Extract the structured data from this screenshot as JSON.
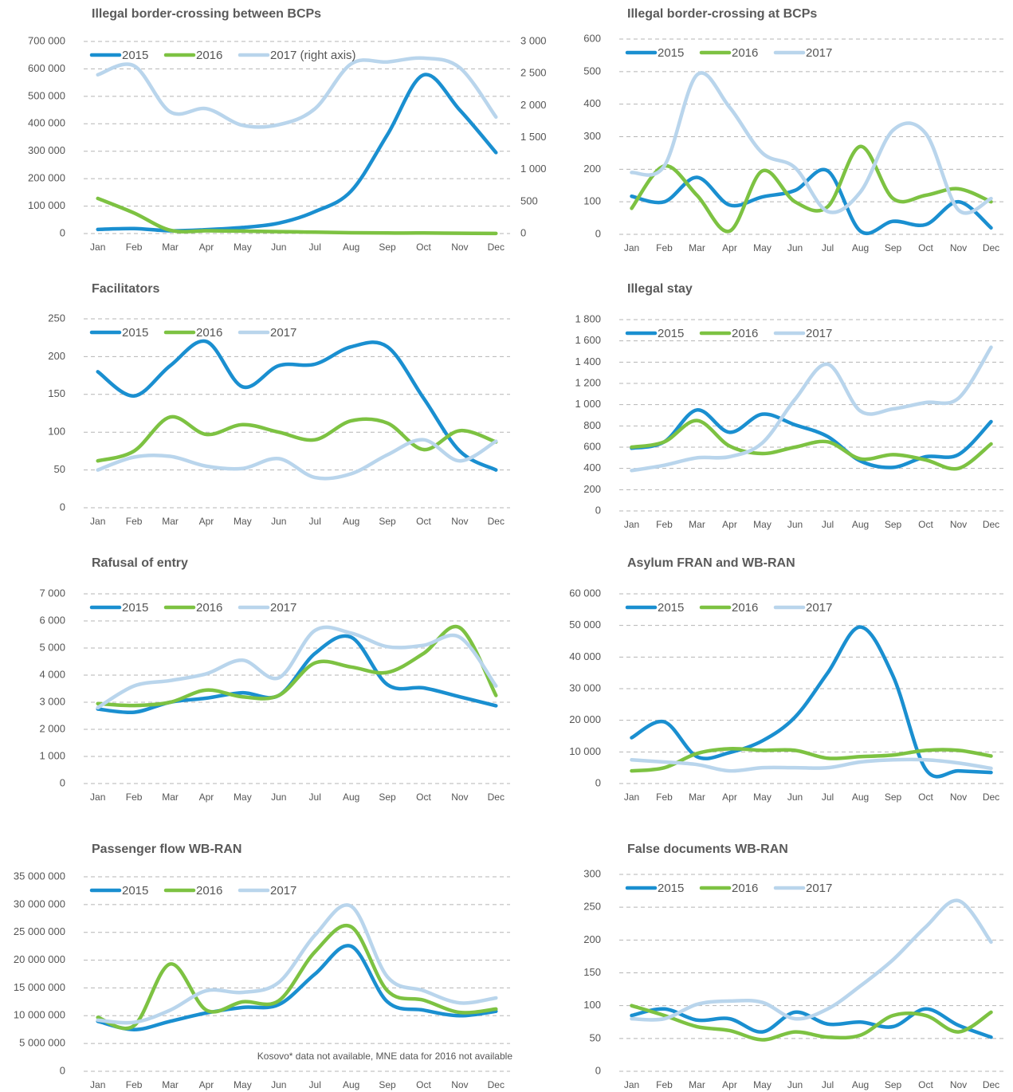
{
  "chart_data": [
    {
      "type": "line",
      "title": "Illegal border-crossing between BCPs",
      "categories": [
        "Jan",
        "Feb",
        "Mar",
        "Apr",
        "May",
        "Jun",
        "Jul",
        "Aug",
        "Sep",
        "Oct",
        "Nov",
        "Dec"
      ],
      "series": [
        {
          "name": "2015",
          "color": "#1a8fd0",
          "values": [
            15000,
            18000,
            10000,
            14000,
            22000,
            38000,
            80000,
            155000,
            360000,
            578000,
            450000,
            295000
          ]
        },
        {
          "name": "2016",
          "color": "#7dc242",
          "values": [
            128000,
            75000,
            12000,
            10000,
            9000,
            7000,
            5000,
            3000,
            2000,
            2000,
            1000,
            500
          ]
        },
        {
          "name": "2017 (right axis)",
          "color": "#b9d5ec",
          "axis": "y2",
          "values": [
            2480,
            2620,
            1900,
            1950,
            1690,
            1700,
            1950,
            2650,
            2680,
            2740,
            2590,
            1820
          ]
        }
      ],
      "ylim": [
        0,
        700000
      ],
      "yticks": [
        0,
        {
          "value": 100000,
          "label": "100 000"
        },
        {
          "value": 200000,
          "label": "200 000"
        },
        {
          "value": 300000,
          "label": "300 000"
        },
        {
          "value": 400000,
          "label": "400 000"
        },
        {
          "value": 500000,
          "label": "500 000"
        },
        {
          "value": 600000,
          "label": "600 000"
        },
        {
          "value": 700000,
          "label": "700 000"
        }
      ],
      "y2lim": [
        0,
        3000
      ],
      "y2ticks": [
        0,
        500,
        {
          "value": 1000,
          "label": "1 000"
        },
        {
          "value": 1500,
          "label": "1 500"
        },
        {
          "value": 2000,
          "label": "2 000"
        },
        {
          "value": 2500,
          "label": "2 500"
        },
        {
          "value": 3000,
          "label": "3 000"
        }
      ],
      "grid": true
    },
    {
      "type": "line",
      "title": "Illegal border-crossing at BCPs",
      "categories": [
        "Jan",
        "Feb",
        "Mar",
        "Apr",
        "May",
        "Jun",
        "Jul",
        "Aug",
        "Sep",
        "Oct",
        "Nov",
        "Dec"
      ],
      "series": [
        {
          "name": "2015",
          "color": "#1a8fd0",
          "values": [
            117,
            100,
            175,
            90,
            115,
            135,
            195,
            10,
            40,
            30,
            100,
            20
          ]
        },
        {
          "name": "2016",
          "color": "#7dc242",
          "values": [
            80,
            210,
            120,
            10,
            195,
            100,
            85,
            270,
            110,
            120,
            140,
            100
          ]
        },
        {
          "name": "2017",
          "color": "#b9d5ec",
          "values": [
            190,
            210,
            490,
            390,
            250,
            205,
            70,
            130,
            320,
            310,
            75,
            110
          ]
        }
      ],
      "ylim": [
        0,
        600
      ],
      "yticks": [
        0,
        100,
        200,
        300,
        400,
        500,
        600
      ],
      "grid": true
    },
    {
      "type": "line",
      "title": "Facilitators",
      "categories": [
        "Jan",
        "Feb",
        "Mar",
        "Apr",
        "May",
        "Jun",
        "Jul",
        "Aug",
        "Sep",
        "Oct",
        "Nov",
        "Dec"
      ],
      "series": [
        {
          "name": "2015",
          "color": "#1a8fd0",
          "values": [
            180,
            148,
            188,
            220,
            160,
            188,
            190,
            213,
            213,
            145,
            75,
            50
          ]
        },
        {
          "name": "2016",
          "color": "#7dc242",
          "values": [
            62,
            75,
            120,
            97,
            110,
            100,
            90,
            115,
            112,
            77,
            102,
            87
          ]
        },
        {
          "name": "2017",
          "color": "#b9d5ec",
          "values": [
            50,
            67,
            68,
            55,
            52,
            65,
            40,
            45,
            70,
            90,
            62,
            88
          ]
        }
      ],
      "ylim": [
        0,
        250
      ],
      "yticks": [
        0,
        50,
        100,
        150,
        200,
        250
      ],
      "grid": true
    },
    {
      "type": "line",
      "title": "Illegal stay",
      "categories": [
        "Jan",
        "Feb",
        "Mar",
        "Apr",
        "May",
        "Jun",
        "Jul",
        "Aug",
        "Sep",
        "Oct",
        "Nov",
        "Dec"
      ],
      "series": [
        {
          "name": "2015",
          "color": "#1a8fd0",
          "values": [
            590,
            650,
            950,
            740,
            910,
            810,
            700,
            470,
            410,
            510,
            530,
            840
          ]
        },
        {
          "name": "2016",
          "color": "#7dc242",
          "values": [
            600,
            650,
            850,
            610,
            540,
            600,
            650,
            490,
            530,
            480,
            400,
            630
          ]
        },
        {
          "name": "2017",
          "color": "#b9d5ec",
          "values": [
            380,
            430,
            500,
            510,
            640,
            1050,
            1380,
            940,
            960,
            1020,
            1060,
            1540
          ]
        }
      ],
      "ylim": [
        0,
        1800
      ],
      "yticks": [
        0,
        200,
        400,
        600,
        800,
        {
          "value": 1000,
          "label": "1 000"
        },
        {
          "value": 1200,
          "label": "1 200"
        },
        {
          "value": 1400,
          "label": "1 400"
        },
        {
          "value": 1600,
          "label": "1 600"
        },
        {
          "value": 1800,
          "label": "1 800"
        }
      ],
      "grid": true
    },
    {
      "type": "line",
      "title": "Rafusal of entry",
      "categories": [
        "Jan",
        "Feb",
        "Mar",
        "Apr",
        "May",
        "Jun",
        "Jul",
        "Aug",
        "Sep",
        "Oct",
        "Nov",
        "Dec"
      ],
      "series": [
        {
          "name": "2015",
          "color": "#1a8fd0",
          "values": [
            2750,
            2630,
            3000,
            3150,
            3350,
            3250,
            4800,
            5400,
            3650,
            3530,
            3200,
            2870
          ]
        },
        {
          "name": "2016",
          "color": "#7dc242",
          "values": [
            2950,
            2880,
            3000,
            3450,
            3200,
            3250,
            4450,
            4300,
            4100,
            4800,
            5750,
            3250
          ]
        },
        {
          "name": "2017",
          "color": "#b9d5ec",
          "values": [
            2800,
            3600,
            3800,
            4050,
            4550,
            3900,
            5650,
            5550,
            5050,
            5100,
            5400,
            3600
          ]
        }
      ],
      "ylim": [
        0,
        7000
      ],
      "yticks": [
        0,
        {
          "value": 1000,
          "label": "1 000"
        },
        {
          "value": 2000,
          "label": "2 000"
        },
        {
          "value": 3000,
          "label": "3 000"
        },
        {
          "value": 4000,
          "label": "4 000"
        },
        {
          "value": 5000,
          "label": "5 000"
        },
        {
          "value": 6000,
          "label": "6 000"
        },
        {
          "value": 7000,
          "label": "7 000"
        }
      ],
      "grid": true
    },
    {
      "type": "line",
      "title": "Asylum FRAN and WB-RAN",
      "categories": [
        "Jan",
        "Feb",
        "Mar",
        "Apr",
        "May",
        "Jun",
        "Jul",
        "Aug",
        "Sep",
        "Oct",
        "Nov",
        "Dec"
      ],
      "series": [
        {
          "name": "2015",
          "color": "#1a8fd0",
          "values": [
            14500,
            19500,
            8500,
            9800,
            13500,
            21000,
            35000,
            49500,
            34000,
            4500,
            4000,
            3500
          ]
        },
        {
          "name": "2016",
          "color": "#7dc242",
          "values": [
            4000,
            5000,
            9500,
            11000,
            10500,
            10500,
            8000,
            8500,
            9000,
            10500,
            10500,
            8700
          ]
        },
        {
          "name": "2017",
          "color": "#b9d5ec",
          "values": [
            7500,
            6800,
            6000,
            4000,
            5000,
            5000,
            5000,
            6800,
            7500,
            7500,
            6500,
            4800
          ]
        }
      ],
      "ylim": [
        0,
        60000
      ],
      "yticks": [
        0,
        {
          "value": 10000,
          "label": "10 000"
        },
        {
          "value": 20000,
          "label": "20 000"
        },
        {
          "value": 30000,
          "label": "30 000"
        },
        {
          "value": 40000,
          "label": "40 000"
        },
        {
          "value": 50000,
          "label": "50 000"
        },
        {
          "value": 60000,
          "label": "60 000"
        }
      ],
      "grid": true
    },
    {
      "type": "line",
      "title": "Passenger flow WB-RAN",
      "note": "Kosovo* data not available, MNE data for 2016 not available",
      "categories": [
        "Jan",
        "Feb",
        "Mar",
        "Apr",
        "May",
        "Jun",
        "Jul",
        "Aug",
        "Sep",
        "Oct",
        "Nov",
        "Dec"
      ],
      "series": [
        {
          "name": "2015",
          "color": "#1a8fd0",
          "values": [
            9000000,
            7500000,
            9000000,
            10500000,
            11500000,
            12000000,
            17500000,
            22500000,
            12500000,
            11000000,
            10000000,
            10800000
          ]
        },
        {
          "name": "2016",
          "color": "#7dc242",
          "values": [
            9700000,
            8200000,
            19300000,
            11000000,
            12500000,
            12700000,
            21500000,
            26000000,
            14500000,
            12800000,
            10600000,
            11200000
          ]
        },
        {
          "name": "2017",
          "color": "#b9d5ec",
          "values": [
            9200000,
            8800000,
            11000000,
            14500000,
            14200000,
            16000000,
            24500000,
            29700000,
            17000000,
            14500000,
            12300000,
            13200000
          ]
        }
      ],
      "ylim": [
        0,
        35000000
      ],
      "yticks": [
        0,
        {
          "value": 5000000,
          "label": "5 000 000"
        },
        {
          "value": 10000000,
          "label": "10 000 000"
        },
        {
          "value": 15000000,
          "label": "15 000 000"
        },
        {
          "value": 20000000,
          "label": "20 000 000"
        },
        {
          "value": 25000000,
          "label": "25 000 000"
        },
        {
          "value": 30000000,
          "label": "30 000 000"
        },
        {
          "value": 35000000,
          "label": "35 000 000"
        }
      ],
      "grid": true
    },
    {
      "type": "line",
      "title": "False documents WB-RAN",
      "categories": [
        "Jan",
        "Feb",
        "Mar",
        "Apr",
        "May",
        "Jun",
        "Jul",
        "Aug",
        "Sep",
        "Oct",
        "Nov",
        "Dec"
      ],
      "series": [
        {
          "name": "2015",
          "color": "#1a8fd0",
          "values": [
            85,
            95,
            78,
            80,
            60,
            90,
            72,
            75,
            68,
            95,
            70,
            52
          ]
        },
        {
          "name": "2016",
          "color": "#7dc242",
          "values": [
            100,
            85,
            68,
            62,
            48,
            60,
            52,
            55,
            85,
            85,
            60,
            90
          ]
        },
        {
          "name": "2017",
          "color": "#b9d5ec",
          "values": [
            80,
            80,
            102,
            107,
            105,
            80,
            95,
            130,
            170,
            220,
            260,
            197
          ]
        }
      ],
      "ylim": [
        0,
        300
      ],
      "yticks": [
        0,
        50,
        100,
        150,
        200,
        250,
        300
      ],
      "grid": true
    }
  ]
}
